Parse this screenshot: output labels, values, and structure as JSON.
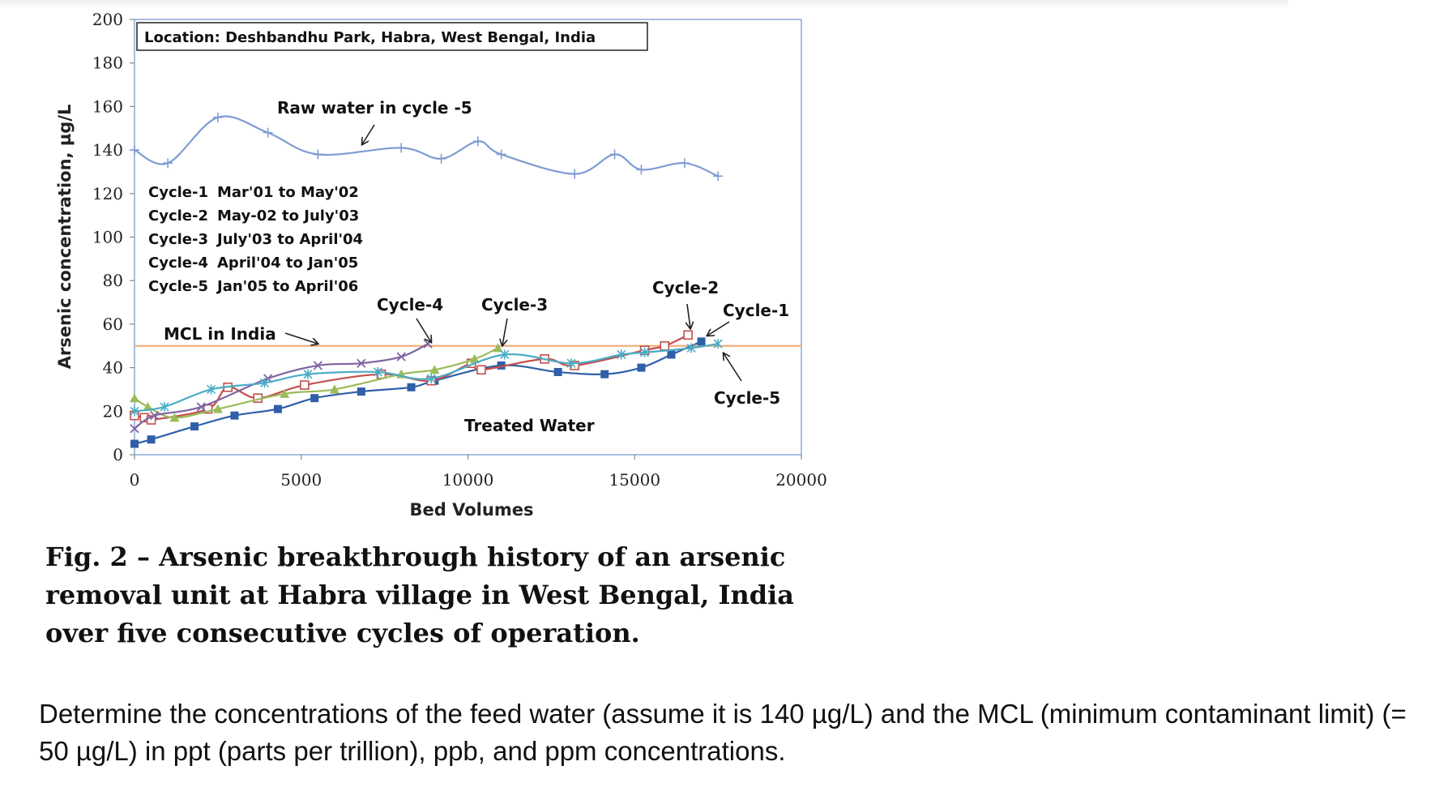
{
  "chart_data": {
    "type": "line",
    "title": "Location: Deshbandhu Park, Habra, West Bengal, India",
    "xlabel": "Bed Volumes",
    "ylabel": "Arsenic concentration, µg/L",
    "xlim": [
      0,
      20000
    ],
    "ylim": [
      0,
      200
    ],
    "xticks": [
      "0",
      "5000",
      "10000",
      "15000",
      "20000"
    ],
    "yticks": [
      "0",
      "20",
      "40",
      "60",
      "80",
      "100",
      "120",
      "140",
      "160",
      "180",
      "200"
    ],
    "grid": false,
    "legend_lines": [
      {
        "cycle": "Cycle-1",
        "period": "Mar'01 to May'02"
      },
      {
        "cycle": "Cycle-2",
        "period": "May-02 to July'03"
      },
      {
        "cycle": "Cycle-3",
        "period": "July'03 to April'04"
      },
      {
        "cycle": "Cycle-4",
        "period": "April'04 to Jan'05"
      },
      {
        "cycle": "Cycle-5",
        "period": "Jan'05 to April'06"
      }
    ],
    "annotations": {
      "raw_water": "Raw water in cycle -5",
      "mcl": "MCL  in India",
      "treated": "Treated  Water",
      "cycle1": "Cycle-1",
      "cycle2": "Cycle-2",
      "cycle3": "Cycle-3",
      "cycle4": "Cycle-4",
      "cycle5": "Cycle-5"
    },
    "mcl_value": 50,
    "series": [
      {
        "name": "Raw water in cycle -5",
        "color": "#7f9bd3",
        "marker": "plus",
        "x": [
          0,
          1000,
          2500,
          4000,
          5500,
          8000,
          9200,
          10300,
          11000,
          13200,
          14400,
          15200,
          16500,
          17500
        ],
        "y": [
          140,
          134,
          155,
          148,
          138,
          141,
          136,
          144,
          138,
          129,
          138,
          131,
          134,
          128
        ]
      },
      {
        "name": "Cycle-1",
        "color": "#2f5fa8",
        "marker": "square",
        "x": [
          0,
          500,
          1800,
          3000,
          4300,
          5400,
          6800,
          8300,
          9000,
          11000,
          12700,
          14100,
          15200,
          16100,
          17000
        ],
        "y": [
          5,
          7,
          13,
          18,
          21,
          26,
          29,
          31,
          34,
          41,
          38,
          37,
          40,
          46,
          52
        ]
      },
      {
        "name": "Cycle-2",
        "color": "#c0504d",
        "marker": "square-open",
        "x": [
          0,
          300,
          500,
          2200,
          2800,
          3700,
          5100,
          7400,
          8900,
          10100,
          10400,
          12300,
          13200,
          15300,
          15900,
          16600
        ],
        "y": [
          18,
          17,
          16,
          21,
          31,
          26,
          32,
          37,
          34,
          42,
          39,
          44,
          41,
          48,
          50,
          55
        ]
      },
      {
        "name": "Cycle-3",
        "color": "#9bbb59",
        "marker": "triangle",
        "x": [
          0,
          400,
          1200,
          2500,
          4500,
          6000,
          8000,
          9000,
          10200,
          10900
        ],
        "y": [
          26,
          22,
          17,
          21,
          28,
          30,
          37,
          39,
          44,
          49
        ]
      },
      {
        "name": "Cycle-4",
        "color": "#8064a2",
        "marker": "x",
        "x": [
          0,
          600,
          2000,
          4000,
          5500,
          6800,
          8000,
          8800
        ],
        "y": [
          12,
          18,
          22,
          35,
          41,
          42,
          45,
          51
        ]
      },
      {
        "name": "Cycle-5",
        "color": "#4bacc6",
        "marker": "star",
        "x": [
          0,
          900,
          2300,
          3900,
          5200,
          7300,
          8900,
          11100,
          13100,
          14600,
          15300,
          16700,
          17500
        ],
        "y": [
          20,
          22,
          30,
          33,
          37,
          38,
          35,
          46,
          42,
          46,
          47,
          49,
          51
        ]
      }
    ]
  },
  "caption": "Fig. 2 – Arsenic breakthrough history of an arsenic removal unit at Habra village in West Bengal, India over five consecutive cycles of operation.",
  "question": "Determine the concentrations of the feed water (assume it is 140 µg/L) and the MCL (minimum contaminant limit) (= 50 µg/L) in ppt (parts per trillion), ppb, and ppm concentrations.",
  "colors": {
    "mcl_line": "#f0b07e",
    "frame": "#8aa8d8"
  }
}
